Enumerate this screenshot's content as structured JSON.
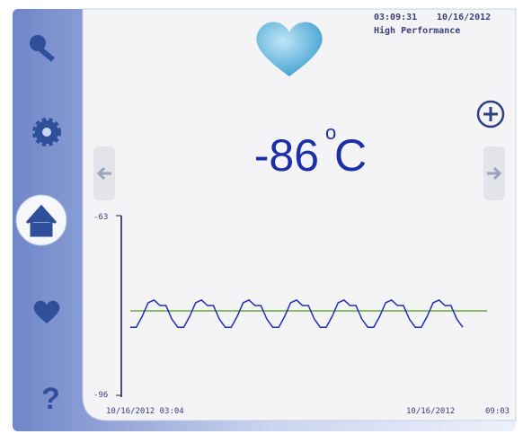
{
  "header": {
    "time": "03:09:31",
    "date": "10/16/2012",
    "mode": "High Performance"
  },
  "temperature": {
    "value": -86,
    "degree": "o",
    "unit": "C"
  },
  "chart_data": {
    "type": "line",
    "ylim": [
      -96,
      -63
    ],
    "yticks": [
      -63,
      -96
    ],
    "x_start": "10/16/2012 03:04",
    "x_end_date": "10/16/2012",
    "x_end_time": "09:03",
    "reference_line": {
      "value": -80.5,
      "color": "#6aaa3a"
    },
    "series": [
      {
        "color": "#1f2fb5",
        "values": [
          -83.5,
          -83.5,
          -81.5,
          -79,
          -78.5,
          -79.5,
          -79.5,
          -82,
          -83.5,
          -83.5,
          -81.5,
          -79,
          -78.5,
          -79.5,
          -79.5,
          -82,
          -83.5,
          -83.5,
          -81.5,
          -79,
          -78.5,
          -79.5,
          -79.5,
          -82,
          -83.5,
          -83.5,
          -81.5,
          -79,
          -78.5,
          -79.5,
          -79.5,
          -82,
          -83.5,
          -83.5,
          -81.5,
          -79,
          -78.5,
          -79.5,
          -79.5,
          -82,
          -83.5,
          -83.5,
          -81.5,
          -79,
          -78.5,
          -79.5,
          -79.5,
          -82,
          -83.5,
          -83.5,
          -81.5,
          -79,
          -78.5,
          -79.5,
          -79.5,
          -82,
          -83.5
        ]
      }
    ]
  }
}
